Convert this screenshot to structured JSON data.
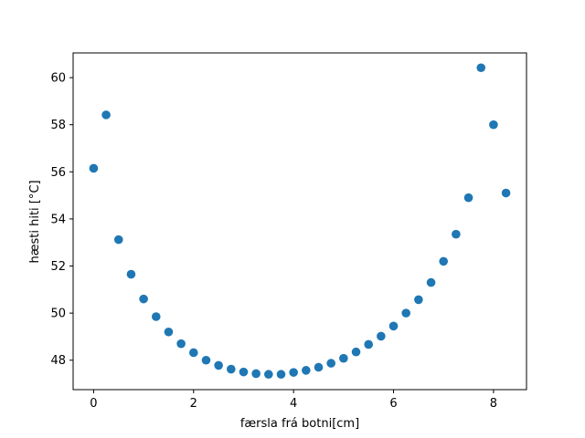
{
  "chart_data": {
    "type": "scatter",
    "xlabel": "færsla frá botni[cm]",
    "ylabel": "hæsti hiti [°C]",
    "xlim": [
      -0.41,
      8.66
    ],
    "ylim": [
      46.75,
      61.05
    ],
    "xticks": [
      0,
      2,
      4,
      6,
      8
    ],
    "yticks": [
      48,
      50,
      52,
      54,
      56,
      58,
      60
    ],
    "grid": false,
    "marker_color": "#1f77b4",
    "series": [
      {
        "x": [
          0,
          0.25,
          0.5,
          0.75,
          1.0,
          1.25,
          1.5,
          1.75,
          2.0,
          2.25,
          2.5,
          2.75,
          3.0,
          3.25,
          3.5,
          3.75,
          4.0,
          4.25,
          4.5,
          4.75,
          5.0,
          5.25,
          5.5,
          5.75,
          6.0,
          6.25,
          6.5,
          6.75,
          7.0,
          7.25,
          7.5,
          7.75,
          8.0,
          8.25
        ],
        "y": [
          56.15,
          58.42,
          53.12,
          51.65,
          50.6,
          49.85,
          49.2,
          48.7,
          48.32,
          48.0,
          47.78,
          47.62,
          47.5,
          47.43,
          47.4,
          47.4,
          47.48,
          47.57,
          47.7,
          47.87,
          48.08,
          48.35,
          48.67,
          49.02,
          49.45,
          50.0,
          50.57,
          51.3,
          52.2,
          53.35,
          54.9,
          60.42,
          58.0,
          55.1
        ]
      }
    ]
  }
}
